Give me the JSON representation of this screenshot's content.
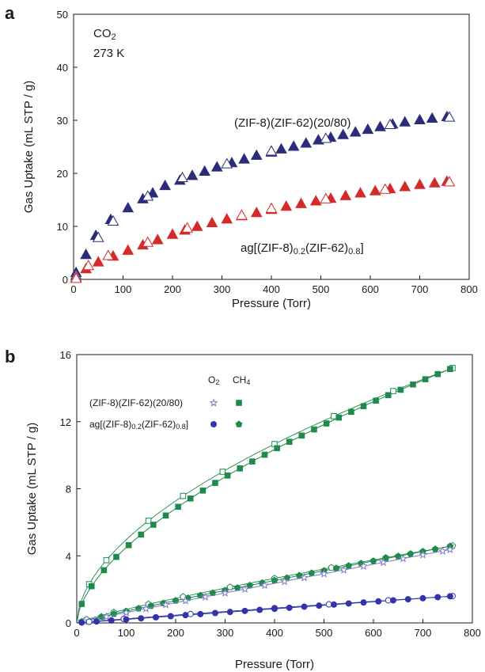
{
  "chart_data": [
    {
      "panel": "a",
      "type": "scatter",
      "xlabel": "Pressure (Torr)",
      "ylabel": "Gas Uptake (mL STP / g)",
      "xlim": [
        0,
        800
      ],
      "ylim": [
        0,
        50
      ],
      "xticks": [
        0,
        100,
        200,
        300,
        400,
        500,
        600,
        700,
        800
      ],
      "yticks": [
        0,
        10,
        20,
        30,
        40,
        50
      ],
      "annotations": [
        {
          "id": "gas",
          "text": "CO2"
        },
        {
          "id": "temp",
          "text": "273 K"
        },
        {
          "id": "s1",
          "text": "(ZIF-8)(ZIF-62)(20/80)"
        },
        {
          "id": "s2",
          "text": "ag[(ZIF-8)0.2(ZIF-62)0.8]"
        }
      ],
      "series": [
        {
          "label_ref": "s1",
          "color": "#2b2c7a",
          "marker": "triangle",
          "adsorption": [
            [
              5,
              1.3
            ],
            [
              25,
              4.7
            ],
            [
              45,
              8.3
            ],
            [
              75,
              11.3
            ],
            [
              110,
              13.5
            ],
            [
              140,
              15.2
            ],
            [
              160,
              16.3
            ],
            [
              185,
              17.7
            ],
            [
              215,
              18.7
            ],
            [
              240,
              19.6
            ],
            [
              265,
              20.4
            ],
            [
              290,
              21.2
            ],
            [
              320,
              22.0
            ],
            [
              345,
              22.7
            ],
            [
              370,
              23.4
            ],
            [
              400,
              24.0
            ],
            [
              420,
              24.6
            ],
            [
              445,
              25.1
            ],
            [
              470,
              25.7
            ],
            [
              495,
              26.3
            ],
            [
              520,
              26.8
            ],
            [
              545,
              27.3
            ],
            [
              570,
              27.8
            ],
            [
              595,
              28.3
            ],
            [
              620,
              28.8
            ],
            [
              645,
              29.3
            ],
            [
              670,
              29.7
            ],
            [
              700,
              30.1
            ],
            [
              725,
              30.4
            ],
            [
              755,
              30.7
            ]
          ],
          "desorption": [
            [
              5,
              0.8
            ],
            [
              50,
              7.9
            ],
            [
              80,
              11.0
            ],
            [
              150,
              15.7
            ],
            [
              220,
              19.2
            ],
            [
              310,
              21.8
            ],
            [
              400,
              24.2
            ],
            [
              510,
              26.6
            ],
            [
              640,
              29.2
            ],
            [
              760,
              30.6
            ]
          ]
        },
        {
          "label_ref": "s2",
          "color": "#d42a2a",
          "marker": "triangle",
          "adsorption": [
            [
              5,
              0.4
            ],
            [
              25,
              2.0
            ],
            [
              50,
              3.3
            ],
            [
              80,
              4.4
            ],
            [
              110,
              5.5
            ],
            [
              140,
              6.5
            ],
            [
              170,
              7.5
            ],
            [
              200,
              8.5
            ],
            [
              225,
              9.3
            ],
            [
              250,
              10.0
            ],
            [
              280,
              10.7
            ],
            [
              310,
              11.4
            ],
            [
              340,
              12.0
            ],
            [
              370,
              12.6
            ],
            [
              400,
              13.2
            ],
            [
              430,
              13.8
            ],
            [
              460,
              14.3
            ],
            [
              490,
              14.8
            ],
            [
              520,
              15.3
            ],
            [
              550,
              15.8
            ],
            [
              580,
              16.3
            ],
            [
              610,
              16.7
            ],
            [
              640,
              17.1
            ],
            [
              670,
              17.5
            ],
            [
              700,
              17.9
            ],
            [
              730,
              18.2
            ],
            [
              755,
              18.5
            ]
          ],
          "desorption": [
            [
              5,
              0.2
            ],
            [
              30,
              2.6
            ],
            [
              70,
              4.5
            ],
            [
              150,
              7.0
            ],
            [
              230,
              9.7
            ],
            [
              340,
              12.1
            ],
            [
              400,
              13.4
            ],
            [
              510,
              15.2
            ],
            [
              630,
              17.0
            ],
            [
              760,
              18.4
            ]
          ]
        }
      ]
    },
    {
      "panel": "b",
      "type": "scatter",
      "xlabel": "Pressure (Torr)",
      "ylabel": "Gas Uptake (mL STP / g)",
      "xlim": [
        0,
        800
      ],
      "ylim": [
        0,
        16
      ],
      "xticks": [
        0,
        100,
        200,
        300,
        400,
        500,
        600,
        700,
        800
      ],
      "yticks": [
        0,
        4,
        8,
        12,
        16
      ],
      "legend": {
        "columns": [
          "O2",
          "CH4"
        ],
        "rows": [
          "(ZIF-8)(ZIF-62)(20/80)",
          "ag[(ZIF-8)0.2(ZIF-62)0.8]"
        ],
        "position": "top-left"
      },
      "series": [
        {
          "gas": "CH4",
          "material": 0,
          "color": "#1e8a4c",
          "marker": "square",
          "fit": [
            [
              0,
              0
            ],
            [
              760,
              15.2
            ]
          ],
          "shape": 0.6,
          "adsorption_x": [
            10,
            30,
            55,
            80,
            105,
            130,
            155,
            180,
            205,
            230,
            255,
            280,
            305,
            330,
            355,
            380,
            405,
            430,
            455,
            480,
            505,
            530,
            555,
            580,
            605,
            630,
            655,
            680,
            705,
            730,
            755
          ],
          "desorption_x": [
            25,
            60,
            145,
            215,
            295,
            400,
            520,
            640,
            760
          ]
        },
        {
          "gas": "CH4",
          "material": 1,
          "color": "#1e8a4c",
          "marker": "pentagon",
          "fit": [
            [
              0,
              0
            ],
            [
              760,
              4.6
            ]
          ],
          "shape": 0.93,
          "adsorption_x": [
            10,
            50,
            75,
            100,
            125,
            150,
            175,
            200,
            225,
            250,
            275,
            300,
            325,
            350,
            375,
            400,
            425,
            450,
            475,
            500,
            525,
            550,
            575,
            600,
            625,
            650,
            675,
            700,
            725,
            755
          ],
          "desorption_x": [
            20,
            75,
            145,
            215,
            310,
            400,
            515,
            625,
            760
          ]
        },
        {
          "gas": "O2",
          "material": 0,
          "color": "#7f7cc4",
          "marker": "star",
          "fit": [
            [
              0,
              0
            ],
            [
              760,
              4.4
            ]
          ],
          "shape": 0.97,
          "adsorption_x": [
            15,
            60,
            100,
            140,
            180,
            220,
            260,
            300,
            340,
            380,
            420,
            460,
            500,
            540,
            580,
            620,
            660,
            700,
            740,
            755
          ]
        },
        {
          "gas": "O2",
          "material": 1,
          "color": "#3333aa",
          "marker": "circle",
          "fit": [
            [
              0,
              0
            ],
            [
              760,
              1.6
            ]
          ],
          "shape": 1.0,
          "adsorption_x": [
            10,
            40,
            70,
            100,
            130,
            160,
            190,
            220,
            250,
            280,
            310,
            340,
            370,
            400,
            430,
            460,
            490,
            520,
            550,
            580,
            610,
            640,
            670,
            700,
            730,
            755
          ],
          "desorption_x": [
            25,
            95,
            230,
            400,
            510,
            630,
            760
          ]
        }
      ]
    }
  ]
}
